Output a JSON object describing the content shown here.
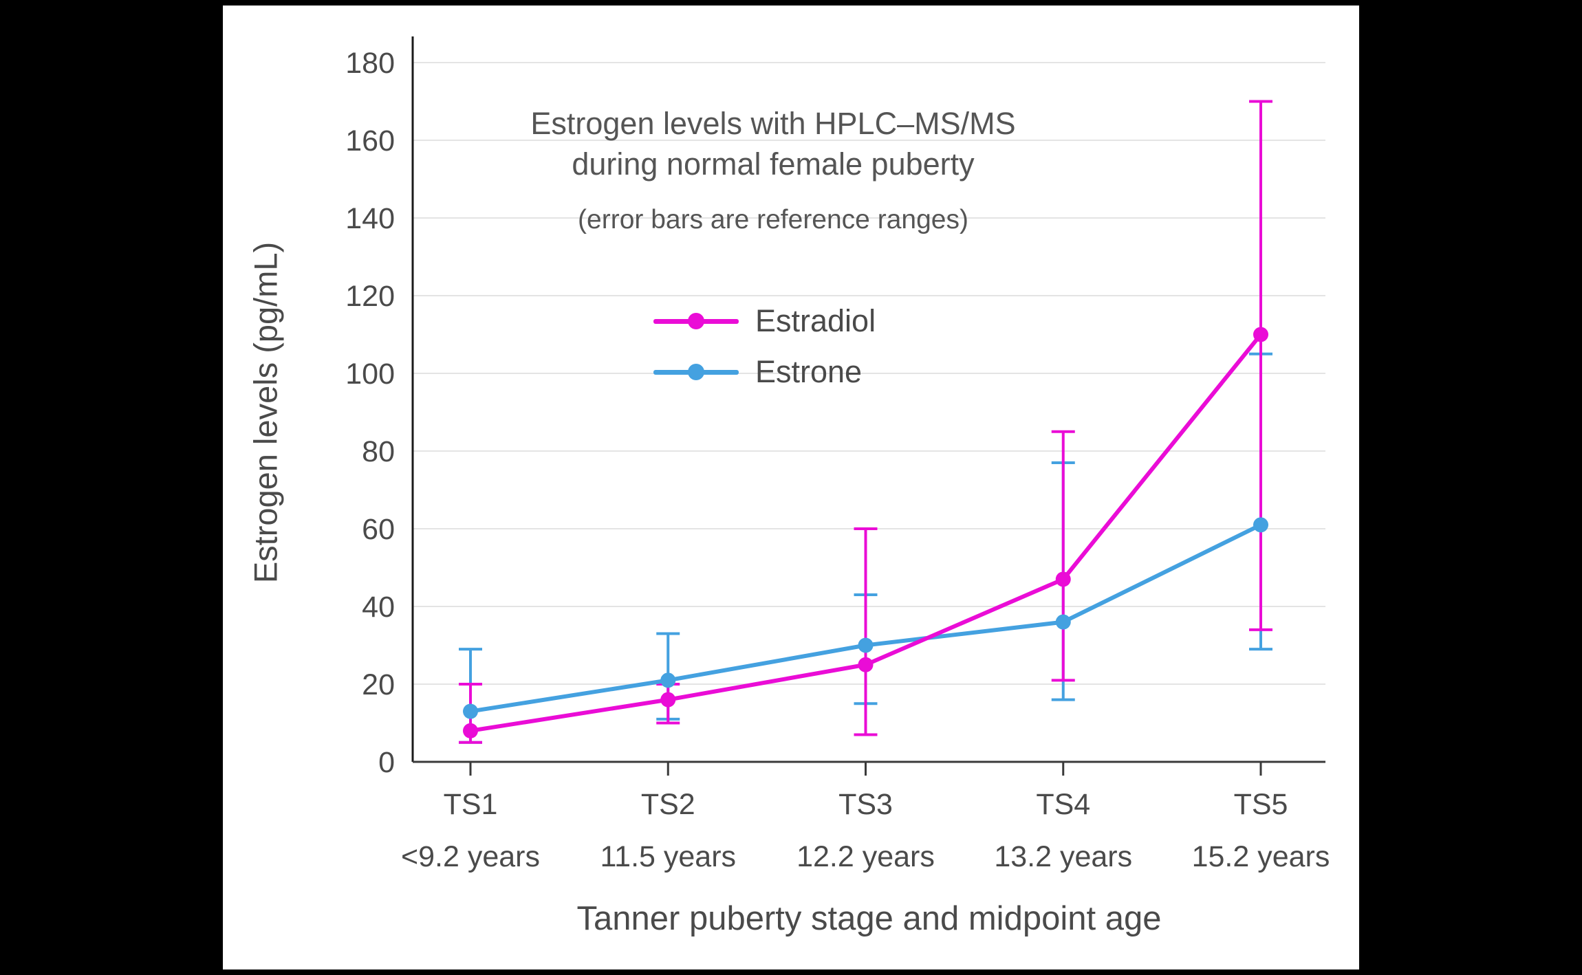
{
  "page": {
    "background_color": "#000000",
    "panel_color": "#ffffff"
  },
  "chart_data": {
    "type": "line",
    "title_line1": "Estrogen levels with HPLC–MS/MS",
    "title_line2": "during normal female puberty",
    "subtitle": "(error bars are reference ranges)",
    "ylabel": "Estrogen levels (pg/mL)",
    "xlabel": "Tanner puberty stage and midpoint age",
    "ylim": [
      0,
      180
    ],
    "yticks": [
      0,
      20,
      40,
      60,
      80,
      100,
      120,
      140,
      160,
      180
    ],
    "grid": true,
    "legend_position": "upper-center",
    "categories": [
      {
        "stage": "TS1",
        "age": "<9.2 years"
      },
      {
        "stage": "TS2",
        "age": "11.5 years"
      },
      {
        "stage": "TS3",
        "age": "12.2 years"
      },
      {
        "stage": "TS4",
        "age": "13.2 years"
      },
      {
        "stage": "TS5",
        "age": "15.2 years"
      }
    ],
    "series": [
      {
        "name": "Estradiol",
        "color": "#ea0cd6",
        "values": [
          8,
          16,
          25,
          47,
          110
        ],
        "error_low": [
          5,
          10,
          7,
          21,
          34
        ],
        "error_high": [
          20,
          20,
          60,
          85,
          170
        ]
      },
      {
        "name": "Estrone",
        "color": "#44a1e0",
        "values": [
          13,
          21,
          30,
          36,
          61
        ],
        "error_low": [
          5,
          11,
          15,
          16,
          29
        ],
        "error_high": [
          29,
          33,
          43,
          77,
          105
        ]
      }
    ],
    "text_color": "#4a4a4a",
    "grid_color": "#e4e4e4",
    "axis_color": "#1a1a1a"
  }
}
